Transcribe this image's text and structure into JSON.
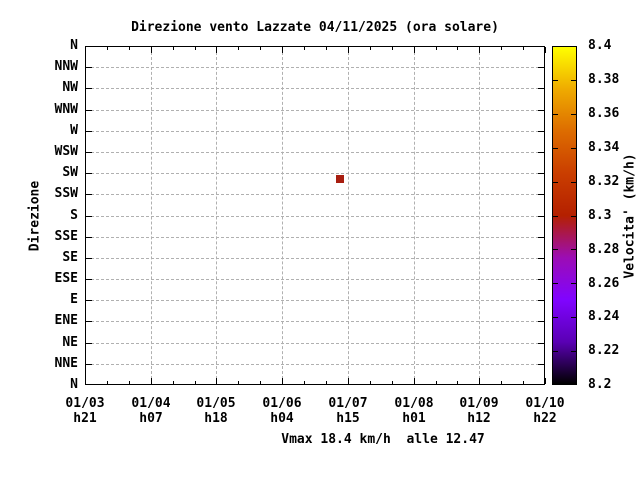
{
  "title": "Direzione vento Lazzate 04/11/2025 (ora solare)",
  "y_axis": {
    "label": "Direzione",
    "categories": [
      "N",
      "NNW",
      "NW",
      "WNW",
      "W",
      "WSW",
      "SW",
      "SSW",
      "S",
      "SSE",
      "SE",
      "ESE",
      "E",
      "ENE",
      "NE",
      "NNE",
      "N"
    ]
  },
  "x_axis": {
    "dates": [
      "01/03",
      "01/04",
      "01/05",
      "01/06",
      "01/07",
      "01/08",
      "01/09",
      "01/10"
    ],
    "hours": [
      "h21",
      "h07",
      "h18",
      "h04",
      "h15",
      "h01",
      "h12",
      "h22"
    ]
  },
  "colorbar": {
    "label": "Velocita' (km/h)",
    "ticks": [
      "8.4",
      "8.38",
      "8.36",
      "8.34",
      "8.32",
      "8.3",
      "8.28",
      "8.26",
      "8.24",
      "8.22",
      "8.2"
    ],
    "min": 8.2,
    "max": 8.4,
    "palette": [
      "#000000",
      "#5a00b4",
      "#8004ff",
      "#9c0db4",
      "#b42000",
      "#ca3e00",
      "#dd6c00",
      "#efab00",
      "#ffff00"
    ]
  },
  "caption": "Vmax 18.4 km/h  alle 12.47",
  "point_color": "#a81e10",
  "grid_color": "#b0b0b0",
  "chart_data": {
    "type": "scatter",
    "title": "Direzione vento Lazzate 04/11/2025 (ora solare)",
    "ylabel": "Direzione",
    "y_categories": [
      "N",
      "NNW",
      "NW",
      "WNW",
      "W",
      "WSW",
      "SW",
      "SSW",
      "S",
      "SSE",
      "SE",
      "ESE",
      "E",
      "ENE",
      "NE",
      "NNE",
      "N"
    ],
    "x_tick_labels": [
      "01/03 h21",
      "01/04 h07",
      "01/05 h18",
      "01/06 h04",
      "01/07 h15",
      "01/08 h01",
      "01/09 h12",
      "01/10 h22"
    ],
    "colorbar": {
      "label": "Velocita' (km/h)",
      "range": [
        8.2,
        8.4
      ],
      "tick_step": 0.02
    },
    "points": [
      {
        "x": "01/07 ~h13",
        "direction": "SW",
        "velocity_kmh": 8.3,
        "color": "#a81e10"
      }
    ],
    "annotation": "Vmax 18.4 km/h  alle 12.47",
    "grid": true,
    "legend": "colorbar-right"
  }
}
